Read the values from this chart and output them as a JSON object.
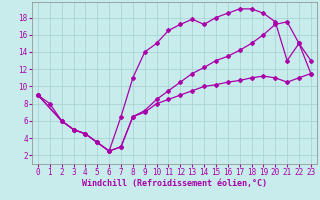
{
  "background_color": "#c8ecec",
  "grid_color": "#aad4d4",
  "line_color": "#aa00aa",
  "marker": "D",
  "marker_size": 2.0,
  "line_width": 0.9,
  "xlabel": "Windchill (Refroidissement éolien,°C)",
  "xlabel_fontsize": 6.0,
  "tick_fontsize": 5.5,
  "xlim": [
    -0.5,
    23.5
  ],
  "ylim": [
    1.0,
    19.8
  ],
  "xticks": [
    0,
    1,
    2,
    3,
    4,
    5,
    6,
    7,
    8,
    9,
    10,
    11,
    12,
    13,
    14,
    15,
    16,
    17,
    18,
    19,
    20,
    21,
    22,
    23
  ],
  "yticks": [
    2,
    4,
    6,
    8,
    10,
    12,
    14,
    16,
    18
  ],
  "line1_x": [
    0,
    1,
    2,
    3,
    4,
    5,
    6,
    7,
    8,
    9,
    10,
    11,
    12,
    13,
    14,
    15,
    16,
    17,
    18,
    19,
    20,
    21,
    22,
    23
  ],
  "line1_y": [
    9,
    8,
    6,
    5,
    4.5,
    3.5,
    2.5,
    6.5,
    11,
    14,
    15,
    16.5,
    17.2,
    17.8,
    17.2,
    18.0,
    18.5,
    19.0,
    19.0,
    18.5,
    17.5,
    13.0,
    15.0,
    11.5
  ],
  "line2_x": [
    0,
    2,
    3,
    4,
    5,
    6,
    7,
    8,
    9,
    10,
    11,
    12,
    13,
    14,
    15,
    16,
    17,
    18,
    19,
    20,
    21,
    22,
    23
  ],
  "line2_y": [
    9,
    6,
    5,
    4.5,
    3.5,
    2.5,
    3.0,
    6.5,
    7.0,
    8.0,
    8.5,
    9.0,
    9.5,
    10.0,
    10.2,
    10.5,
    10.7,
    11.0,
    11.2,
    11.0,
    10.5,
    11.0,
    11.5
  ],
  "line3_x": [
    0,
    2,
    3,
    4,
    5,
    6,
    7,
    8,
    9,
    10,
    11,
    12,
    13,
    14,
    15,
    16,
    17,
    18,
    19,
    20,
    21,
    22,
    23
  ],
  "line3_y": [
    9,
    6,
    5,
    4.5,
    3.5,
    2.5,
    3.0,
    6.5,
    7.2,
    8.5,
    9.5,
    10.5,
    11.5,
    12.2,
    13.0,
    13.5,
    14.2,
    15.0,
    16.0,
    17.2,
    17.5,
    15.0,
    13.0
  ]
}
